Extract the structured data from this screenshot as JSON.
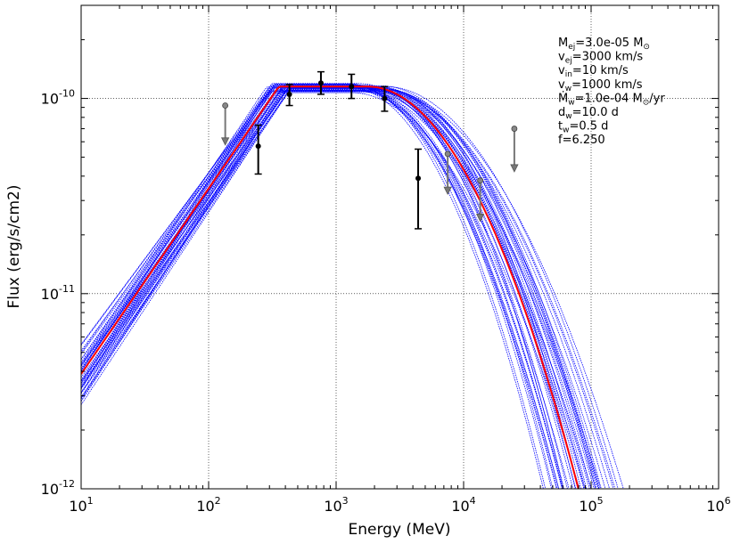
{
  "chart_data": {
    "type": "line",
    "xscale": "log",
    "yscale": "log",
    "xlabel": "Energy (MeV)",
    "ylabel": "Flux (erg/s/cm2)",
    "xlim": [
      10,
      1000000
    ],
    "ylim": [
      1e-12,
      3e-10
    ],
    "grid": true,
    "x_ticks": [
      {
        "value": 10,
        "base": "10",
        "exp": "1"
      },
      {
        "value": 100,
        "base": "10",
        "exp": "2"
      },
      {
        "value": 1000,
        "base": "10",
        "exp": "3"
      },
      {
        "value": 10000,
        "base": "10",
        "exp": "4"
      },
      {
        "value": 100000,
        "base": "10",
        "exp": "5"
      },
      {
        "value": 1000000,
        "base": "10",
        "exp": "6"
      }
    ],
    "y_ticks": [
      {
        "value": 1e-12,
        "base": "10",
        "exp": "-12"
      },
      {
        "value": 1e-11,
        "base": "10",
        "exp": "-11"
      },
      {
        "value": 1e-10,
        "base": "10",
        "exp": "-10"
      }
    ],
    "model": {
      "peak_flux": 1.15e-10,
      "low_log_energy": 2.55,
      "high_log_energy": 3.25,
      "low_index": 0.95,
      "high_width": 1.15,
      "high_power": 2.0,
      "color": "#ff0000"
    },
    "ensemble": {
      "count": 44,
      "color": "#0000ff",
      "low_spread": 0.2,
      "high_spread": 0.35,
      "index_spread": 0.15
    },
    "detections": [
      {
        "energy": 245,
        "flux": 5.7e-11,
        "err_low": 4.1e-11,
        "err_high": 7.3e-11
      },
      {
        "energy": 430,
        "flux": 1.05e-10,
        "err_low": 9.2e-11,
        "err_high": 1.18e-10
      },
      {
        "energy": 760,
        "flux": 1.2e-10,
        "err_low": 1.05e-10,
        "err_high": 1.37e-10
      },
      {
        "energy": 1320,
        "flux": 1.15e-10,
        "err_low": 1e-10,
        "err_high": 1.33e-10
      },
      {
        "energy": 2400,
        "flux": 1e-10,
        "err_low": 8.6e-11,
        "err_high": 1.15e-10
      },
      {
        "energy": 4400,
        "flux": 3.9e-11,
        "err_low": 2.15e-11,
        "err_high": 5.5e-11
      }
    ],
    "upper_limits": [
      {
        "energy": 135,
        "flux": 9.2e-11,
        "arrow_to": 5.9e-11
      },
      {
        "energy": 7500,
        "flux": 5.2e-11,
        "arrow_to": 3.3e-11
      },
      {
        "energy": 13500,
        "flux": 3.8e-11,
        "arrow_to": 2.4e-11
      },
      {
        "energy": 25000,
        "flux": 7e-11,
        "arrow_to": 4.3e-11
      }
    ],
    "annotations": [
      {
        "base": "M",
        "sub": "ej",
        "rest": "=3.0e-05 M",
        "rest_sub": "⊙",
        "tail": ""
      },
      {
        "base": "v",
        "sub": "ej",
        "rest": "=3000 km/s",
        "rest_sub": "",
        "tail": ""
      },
      {
        "base": "v",
        "sub": "in",
        "rest": "=10 km/s",
        "rest_sub": "",
        "tail": ""
      },
      {
        "base": "v",
        "sub": "w",
        "rest": "=1000 km/s",
        "rest_sub": "",
        "tail": ""
      },
      {
        "base": "Ṁ",
        "sub": "w",
        "rest": "=1.0e-04 M",
        "rest_sub": "⊙",
        "tail": "/yr"
      },
      {
        "base": "d",
        "sub": "w",
        "rest": "=10.0 d",
        "rest_sub": "",
        "tail": ""
      },
      {
        "base": "t",
        "sub": "w",
        "rest": "=0.5 d",
        "rest_sub": "",
        "tail": ""
      },
      {
        "base": "f",
        "sub": "",
        "rest": "=6.250",
        "rest_sub": "",
        "tail": ""
      }
    ]
  }
}
